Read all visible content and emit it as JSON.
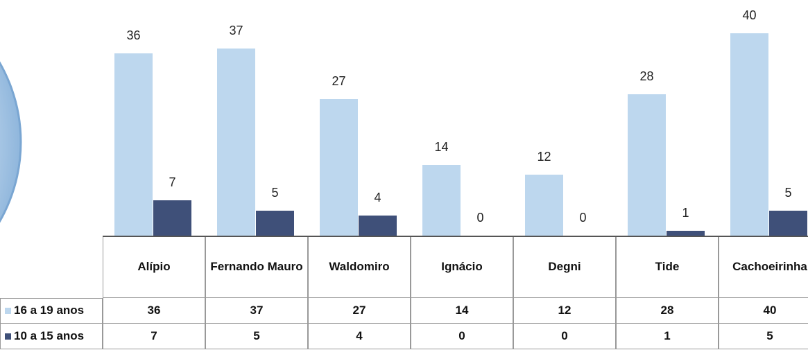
{
  "chart_data": {
    "type": "bar",
    "categories": [
      "Alípio",
      "Fernando Mauro",
      "Waldomiro",
      "Ignácio",
      "Degni",
      "Tide",
      "Cachoeirinha"
    ],
    "series": [
      {
        "name": "16 a 19 anos",
        "color": "#bdd7ee",
        "values": [
          36,
          37,
          27,
          14,
          12,
          28,
          40
        ]
      },
      {
        "name": "10 a 15 anos",
        "color": "#3f5079",
        "values": [
          7,
          5,
          4,
          0,
          0,
          1,
          5
        ]
      }
    ]
  }
}
